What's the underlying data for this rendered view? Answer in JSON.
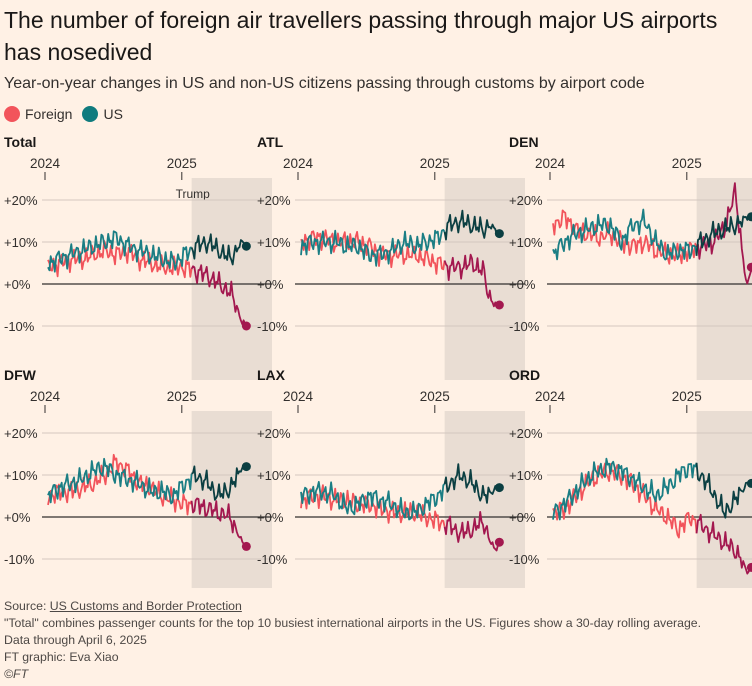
{
  "title": "The number of foreign air travellers passing through major US airports has nosedived",
  "subtitle": "Year-on-year changes in US and non-US citizens passing through customs by airport code",
  "legend": [
    {
      "name": "Foreign",
      "color": "#f2545b"
    },
    {
      "name": "US",
      "color": "#0f7b7e"
    }
  ],
  "colors": {
    "foreign_light": "#f2545b",
    "foreign_dark": "#a3184f",
    "us_light": "#1b7e84",
    "us_dark": "#0b3f42",
    "shade": "#e9ddd3",
    "grid": "#d4c8bf",
    "zero": "#33302e"
  },
  "annotation": "Trump",
  "footer": {
    "source_label": "Source: ",
    "source_link": "US Customs and Border Protection",
    "note": "\"Total\" combines passenger counts for the top 10 busiest international airports in the US. Figures show a 30-day rolling average.",
    "data_through": "Data through April 6, 2025",
    "credit": "FT graphic: Eva Xiao",
    "copyright": "©FT"
  },
  "chart_data": [
    {
      "type": "line",
      "panel": "Total",
      "xlabel": "",
      "ylabel": "",
      "x_ticks": [
        "2024",
        "2025"
      ],
      "y_ticks": [
        "+20%",
        "+10%",
        "+0%",
        "-10%"
      ],
      "ylim": [
        -12,
        25
      ],
      "trump_from_month": 12.6,
      "series": [
        {
          "name": "Foreign",
          "x": [
            0,
            1,
            2,
            3,
            4,
            5,
            6,
            7,
            8,
            9,
            10,
            11,
            12,
            13,
            14,
            15,
            16,
            16.5,
            17,
            17.4
          ],
          "values": [
            4,
            5,
            6,
            6,
            7,
            8,
            7,
            8,
            6,
            5,
            4,
            4,
            4,
            3,
            2,
            0,
            -2,
            -5,
            -9,
            -10
          ]
        },
        {
          "name": "US",
          "x": [
            0,
            1,
            2,
            3,
            4,
            5,
            6,
            7,
            8,
            9,
            10,
            11,
            12,
            13,
            14,
            15,
            16,
            16.5,
            17,
            17.4
          ],
          "values": [
            5,
            6,
            7,
            8,
            9,
            10,
            11,
            9,
            8,
            7,
            6,
            5,
            7,
            9,
            10,
            8,
            6,
            8,
            10,
            9
          ]
        }
      ]
    },
    {
      "type": "line",
      "panel": "ATL",
      "xlabel": "",
      "ylabel": "",
      "x_ticks": [
        "2024",
        "2025"
      ],
      "y_ticks": [
        "+20%",
        "+10%",
        "+0%",
        "-10%"
      ],
      "ylim": [
        -12,
        25
      ],
      "trump_from_month": 12.6,
      "series": [
        {
          "name": "Foreign",
          "x": [
            0,
            1,
            2,
            3,
            4,
            5,
            6,
            7,
            8,
            9,
            10,
            11,
            12,
            13,
            14,
            15,
            16,
            16.5,
            17,
            17.4
          ],
          "values": [
            10,
            11,
            11,
            10,
            10,
            10,
            9,
            7,
            7,
            7,
            7,
            6,
            5,
            4,
            4,
            5,
            3,
            -3,
            -5,
            -5
          ]
        },
        {
          "name": "US",
          "x": [
            0,
            1,
            2,
            3,
            4,
            5,
            6,
            7,
            8,
            9,
            10,
            11,
            12,
            13,
            14,
            15,
            16,
            16.5,
            17,
            17.4
          ],
          "values": [
            9,
            10,
            10,
            10,
            9,
            9,
            7,
            7,
            8,
            10,
            9,
            10,
            11,
            14,
            15,
            14,
            13,
            14,
            13,
            12
          ]
        }
      ]
    },
    {
      "type": "line",
      "panel": "DEN",
      "xlabel": "",
      "ylabel": "",
      "x_ticks": [
        "2024",
        "2025"
      ],
      "y_ticks": [
        "+20%",
        "+10%",
        "+0%",
        "-10%"
      ],
      "ylim": [
        -12,
        25
      ],
      "trump_from_month": 12.6,
      "series": [
        {
          "name": "Foreign",
          "x": [
            0,
            1,
            2,
            3,
            4,
            5,
            6,
            7,
            8,
            9,
            10,
            11,
            12,
            13,
            14,
            15,
            16,
            16.5,
            17,
            17.4
          ],
          "values": [
            14,
            16,
            13,
            12,
            11,
            12,
            10,
            9,
            10,
            8,
            7,
            7,
            8,
            9,
            10,
            13,
            22,
            10,
            -1,
            4
          ]
        },
        {
          "name": "US",
          "x": [
            0,
            1,
            2,
            3,
            4,
            5,
            6,
            7,
            8,
            9,
            10,
            11,
            12,
            13,
            14,
            15,
            16,
            16.5,
            17,
            17.4
          ],
          "values": [
            7,
            10,
            12,
            13,
            14,
            14,
            10,
            14,
            15,
            10,
            7,
            8,
            8,
            10,
            12,
            13,
            14,
            15,
            16,
            16
          ]
        }
      ]
    },
    {
      "type": "line",
      "panel": "DFW",
      "xlabel": "",
      "ylabel": "",
      "x_ticks": [
        "2024",
        "2025"
      ],
      "y_ticks": [
        "+20%",
        "+10%",
        "+0%",
        "-10%"
      ],
      "ylim": [
        -12,
        25
      ],
      "trump_from_month": 12.6,
      "series": [
        {
          "name": "Foreign",
          "x": [
            0,
            1,
            2,
            3,
            4,
            5,
            6,
            7,
            8,
            9,
            10,
            11,
            12,
            13,
            14,
            15,
            16,
            16.5,
            17,
            17.4
          ],
          "values": [
            5,
            6,
            6,
            7,
            8,
            10,
            13,
            11,
            8,
            7,
            5,
            4,
            3,
            3,
            2,
            1,
            0,
            -3,
            -6,
            -7
          ]
        },
        {
          "name": "US",
          "x": [
            0,
            1,
            2,
            3,
            4,
            5,
            6,
            7,
            8,
            9,
            10,
            11,
            12,
            13,
            14,
            15,
            16,
            16.5,
            17,
            17.4
          ],
          "values": [
            5,
            7,
            8,
            9,
            11,
            12,
            10,
            9,
            8,
            6,
            6,
            5,
            8,
            10,
            8,
            5,
            7,
            9,
            12,
            12
          ]
        }
      ]
    },
    {
      "type": "line",
      "panel": "LAX",
      "xlabel": "",
      "ylabel": "",
      "x_ticks": [
        "2024",
        "2025"
      ],
      "y_ticks": [
        "+20%",
        "+10%",
        "+0%",
        "-10%"
      ],
      "ylim": [
        -12,
        25
      ],
      "trump_from_month": 12.6,
      "series": [
        {
          "name": "Foreign",
          "x": [
            0,
            1,
            2,
            3,
            4,
            5,
            6,
            7,
            8,
            9,
            10,
            11,
            12,
            13,
            14,
            15,
            16,
            16.5,
            17,
            17.4
          ],
          "values": [
            4,
            5,
            5,
            4,
            4,
            3,
            3,
            2,
            1,
            1,
            1,
            0,
            -1,
            -2,
            -4,
            -3,
            -1,
            -5,
            -8,
            -6
          ]
        },
        {
          "name": "US",
          "x": [
            0,
            1,
            2,
            3,
            4,
            5,
            6,
            7,
            8,
            9,
            10,
            11,
            12,
            13,
            14,
            15,
            16,
            16.5,
            17,
            17.4
          ],
          "values": [
            5,
            6,
            6,
            5,
            2,
            3,
            5,
            4,
            3,
            1,
            1,
            3,
            5,
            8,
            10,
            8,
            5,
            5,
            7,
            7
          ]
        }
      ]
    },
    {
      "type": "line",
      "panel": "ORD",
      "xlabel": "",
      "ylabel": "",
      "x_ticks": [
        "2024",
        "2025"
      ],
      "y_ticks": [
        "+20%",
        "+10%",
        "+0%",
        "-10%"
      ],
      "ylim": [
        -12,
        25
      ],
      "trump_from_month": 12.6,
      "series": [
        {
          "name": "Foreign",
          "x": [
            0,
            1,
            2,
            3,
            4,
            5,
            6,
            7,
            8,
            9,
            10,
            11,
            12,
            13,
            14,
            15,
            16,
            16.5,
            17,
            17.4
          ],
          "values": [
            1,
            2,
            5,
            8,
            10,
            11,
            10,
            8,
            5,
            2,
            0,
            -3,
            0,
            -2,
            -4,
            -6,
            -8,
            -10,
            -13,
            -12
          ]
        },
        {
          "name": "US",
          "x": [
            0,
            1,
            2,
            3,
            4,
            5,
            6,
            7,
            8,
            9,
            10,
            11,
            12,
            13,
            14,
            15,
            16,
            16.5,
            17,
            17.4
          ],
          "values": [
            1,
            3,
            6,
            9,
            11,
            12,
            11,
            9,
            7,
            5,
            7,
            10,
            12,
            10,
            6,
            1,
            4,
            6,
            8,
            8
          ]
        }
      ]
    }
  ]
}
